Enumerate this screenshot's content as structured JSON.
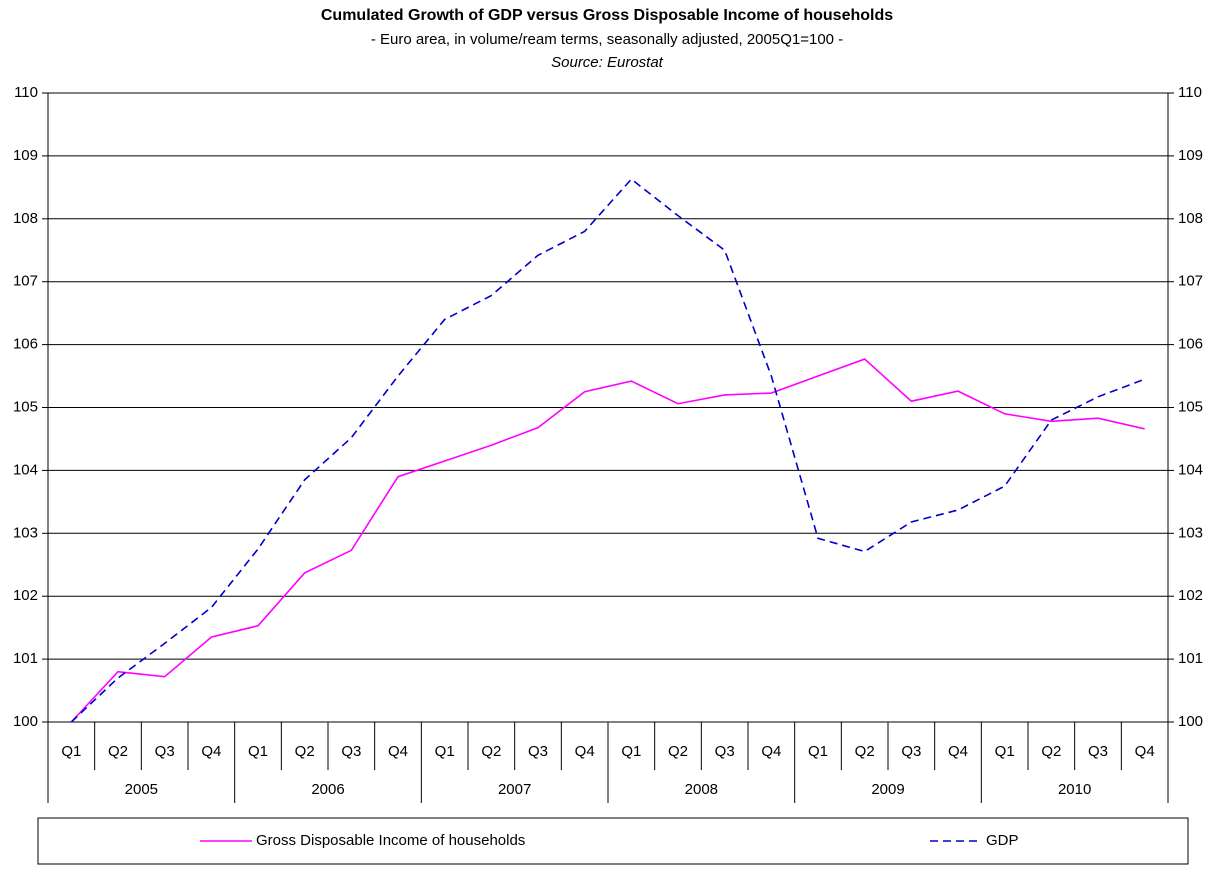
{
  "chart_data": {
    "type": "line",
    "title": "Cumulated Growth of GDP versus Gross Disposable Income of households",
    "subtitle": "- Euro area, in volume/ream terms, seasonally adjusted, 2005Q1=100 -",
    "source": "Source: Eurostat",
    "categories": [
      "Q1",
      "Q2",
      "Q3",
      "Q4",
      "Q1",
      "Q2",
      "Q3",
      "Q4",
      "Q1",
      "Q2",
      "Q3",
      "Q4",
      "Q1",
      "Q2",
      "Q3",
      "Q4",
      "Q1",
      "Q2",
      "Q3",
      "Q4",
      "Q1",
      "Q2",
      "Q3",
      "Q4"
    ],
    "category_groups": [
      "2005",
      "2006",
      "2007",
      "2008",
      "2009",
      "2010"
    ],
    "series": [
      {
        "name": "Gross Disposable Income of households",
        "color": "#ff00ff",
        "dash": "solid",
        "values": [
          100,
          100.8,
          100.72,
          101.35,
          101.53,
          102.37,
          102.73,
          103.9,
          104.15,
          104.4,
          104.68,
          105.25,
          105.42,
          105.06,
          105.2,
          105.23,
          105.5,
          105.77,
          105.1,
          105.26,
          104.9,
          104.78,
          104.83,
          104.66
        ]
      },
      {
        "name": "GDP",
        "color": "#0000cc",
        "dash": "dashed",
        "values": [
          100,
          100.7,
          101.25,
          101.82,
          102.75,
          103.85,
          104.52,
          105.5,
          106.4,
          106.78,
          107.42,
          107.8,
          108.63,
          108.05,
          107.5,
          105.5,
          102.92,
          102.71,
          103.18,
          103.37,
          103.75,
          104.8,
          105.17,
          105.45
        ]
      }
    ],
    "ylim": [
      100,
      110
    ],
    "yticks": [
      100,
      101,
      102,
      103,
      104,
      105,
      106,
      107,
      108,
      109,
      110
    ],
    "y2lim": [
      100,
      110
    ],
    "y2ticks": [
      100,
      101,
      102,
      103,
      104,
      105,
      106,
      107,
      108,
      109,
      110
    ],
    "grid": true,
    "legend": "bottom"
  }
}
